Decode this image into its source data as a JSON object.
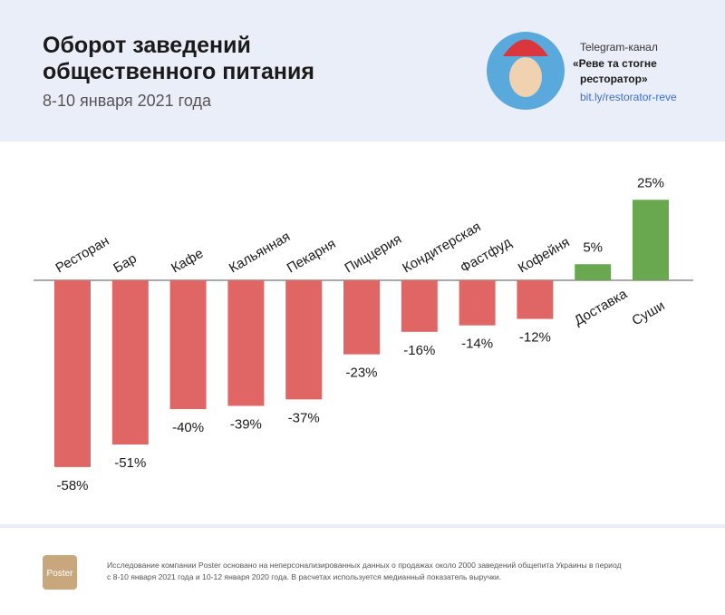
{
  "header": {
    "title_lines": [
      "Оборот заведений",
      "общественного питания"
    ],
    "subtitle": "8-10 января 2021 года",
    "channel_label": "Telegram-канал",
    "channel_name_lines": [
      "«Реве та стогне",
      "ресторатор»"
    ],
    "link": "bit.ly/restorator-reve"
  },
  "chart_data": {
    "type": "bar",
    "categories": [
      "Ресторан",
      "Бар",
      "Кафе",
      "Кальянная",
      "Пекарня",
      "Пиццерия",
      "Кондитерская",
      "Фастфуд",
      "Кофейня",
      "Доставка",
      "Суши"
    ],
    "values": [
      -58,
      -51,
      -40,
      -39,
      -37,
      -23,
      -16,
      -14,
      -12,
      5,
      25
    ],
    "value_labels": [
      "-58%",
      "-51%",
      "-40%",
      "-39%",
      "-37%",
      "-23%",
      "-16%",
      "-14%",
      "-12%",
      "5%",
      "25%"
    ],
    "negative_color": "#e06666",
    "positive_color": "#6aa84f"
  },
  "footer": {
    "logo": "Poster",
    "note_lines": [
      "Исследование компании Poster основано на неперсонализированных данных о продажах около 2000 заведений общепита Украины в период",
      "с 8-10 января 2021 года и 10-12 января 2020 года. В расчетах используется медианный показатель выручки."
    ]
  }
}
